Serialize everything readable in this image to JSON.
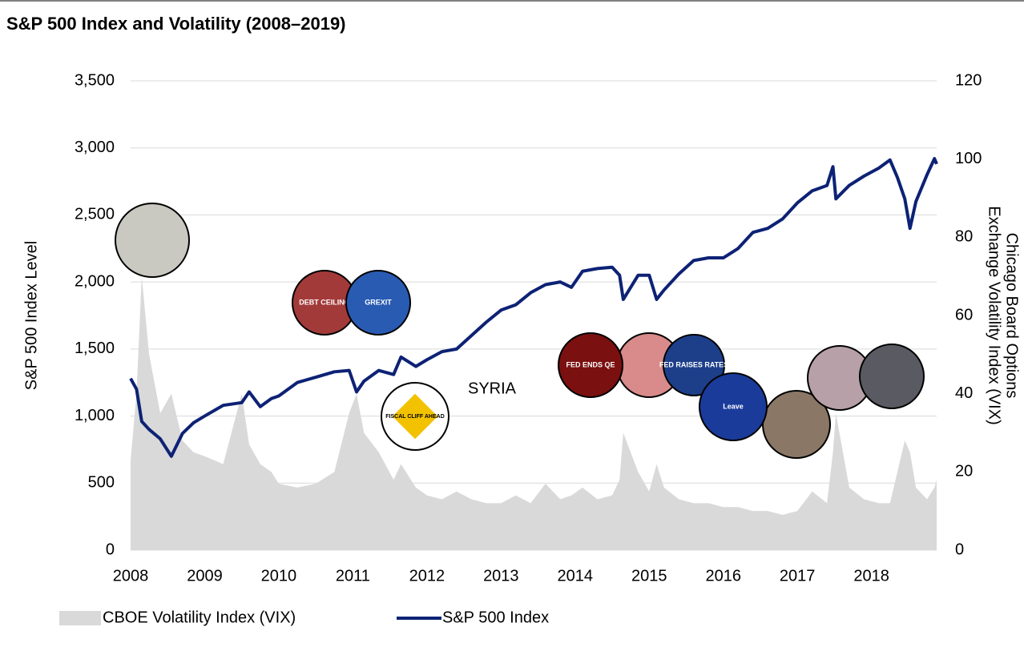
{
  "chart_data": {
    "type": "line",
    "title": "S&P 500 Index and Volatility (2008–2019)",
    "ylabel": "S&P 500 Index Level",
    "y2label": [
      "Chicago Board Options",
      "Exchange Volatility Index (VIX)"
    ],
    "x": [
      2008.0,
      2008.08,
      2008.15,
      2008.25,
      2008.4,
      2008.55,
      2008.7,
      2008.85,
      2009.0,
      2009.25,
      2009.5,
      2009.6,
      2009.75,
      2009.9,
      2010.0,
      2010.25,
      2010.5,
      2010.75,
      2010.95,
      2011.05,
      2011.15,
      2011.35,
      2011.55,
      2011.65,
      2011.85,
      2012.0,
      2012.2,
      2012.4,
      2012.6,
      2012.8,
      2013.0,
      2013.2,
      2013.4,
      2013.6,
      2013.8,
      2013.95,
      2014.1,
      2014.3,
      2014.5,
      2014.6,
      2014.65,
      2014.85,
      2015.0,
      2015.1,
      2015.2,
      2015.4,
      2015.6,
      2015.8,
      2016.0,
      2016.2,
      2016.4,
      2016.6,
      2016.8,
      2017.0,
      2017.2,
      2017.4,
      2017.48,
      2017.52,
      2017.7,
      2017.9,
      2018.1,
      2018.25,
      2018.35,
      2018.45,
      2018.52,
      2018.6,
      2018.75,
      2018.85,
      2018.88
    ],
    "series": [
      {
        "name": "CBOE Volatility Index (VIX)",
        "color": "#d9d9d9",
        "axis": "y2",
        "style": "area",
        "values": [
          23,
          40,
          70,
          50,
          35,
          40,
          28,
          25,
          24,
          22,
          40,
          27,
          22,
          20,
          17,
          16,
          17,
          20,
          35,
          40,
          30,
          25,
          18,
          22,
          16,
          14,
          13,
          15,
          13,
          12,
          12,
          14,
          12,
          17,
          13,
          14,
          16,
          13,
          14,
          18,
          30,
          20,
          15,
          22,
          16,
          13,
          12,
          12,
          11,
          11,
          10,
          10,
          9,
          10,
          15,
          12,
          25,
          35,
          16,
          13,
          12,
          12,
          20,
          28,
          25,
          16,
          13,
          16,
          18
        ]
      },
      {
        "name": "S&P 500 Index",
        "color": "#0d2275",
        "style": "line",
        "values": [
          1280,
          1200,
          960,
          900,
          830,
          700,
          870,
          950,
          1000,
          1080,
          1100,
          1180,
          1070,
          1130,
          1150,
          1250,
          1290,
          1330,
          1340,
          1180,
          1260,
          1340,
          1310,
          1440,
          1370,
          1420,
          1480,
          1500,
          1600,
          1700,
          1790,
          1830,
          1920,
          1980,
          2000,
          1960,
          2080,
          2100,
          2110,
          2050,
          1870,
          2050,
          2050,
          1870,
          1940,
          2060,
          2160,
          2180,
          2180,
          2250,
          2370,
          2400,
          2470,
          2590,
          2680,
          2720,
          2860,
          2620,
          2720,
          2790,
          2850,
          2910,
          2780,
          2620,
          2400,
          2600,
          2800,
          2920,
          2880
        ]
      }
    ],
    "xlim": [
      2008,
      2018.88
    ],
    "xticks": [
      2008,
      2009,
      2010,
      2011,
      2012,
      2013,
      2014,
      2015,
      2016,
      2017,
      2018
    ],
    "ylim": [
      0,
      3500
    ],
    "yticks": [
      0,
      {
        "value": 500,
        "label": "500"
      },
      {
        "value": 1000,
        "label": "1,000"
      },
      {
        "value": 1500,
        "label": "1,500"
      },
      {
        "value": 2000,
        "label": "2,000"
      },
      {
        "value": 2500,
        "label": "2,500"
      },
      {
        "value": 3000,
        "label": "3,000"
      },
      {
        "value": 3500,
        "label": "3,500"
      }
    ],
    "y2lim": [
      0,
      120
    ],
    "y2ticks": [
      0,
      20,
      40,
      60,
      80,
      100,
      120
    ],
    "grid": true,
    "annotations": [
      "SYRIA",
      "DEBT CEILING",
      "GREXIT",
      "FISCAL CLIFF AHEAD",
      "FED ENDS QE",
      "FED RAISES RATES",
      "Leave"
    ]
  }
}
